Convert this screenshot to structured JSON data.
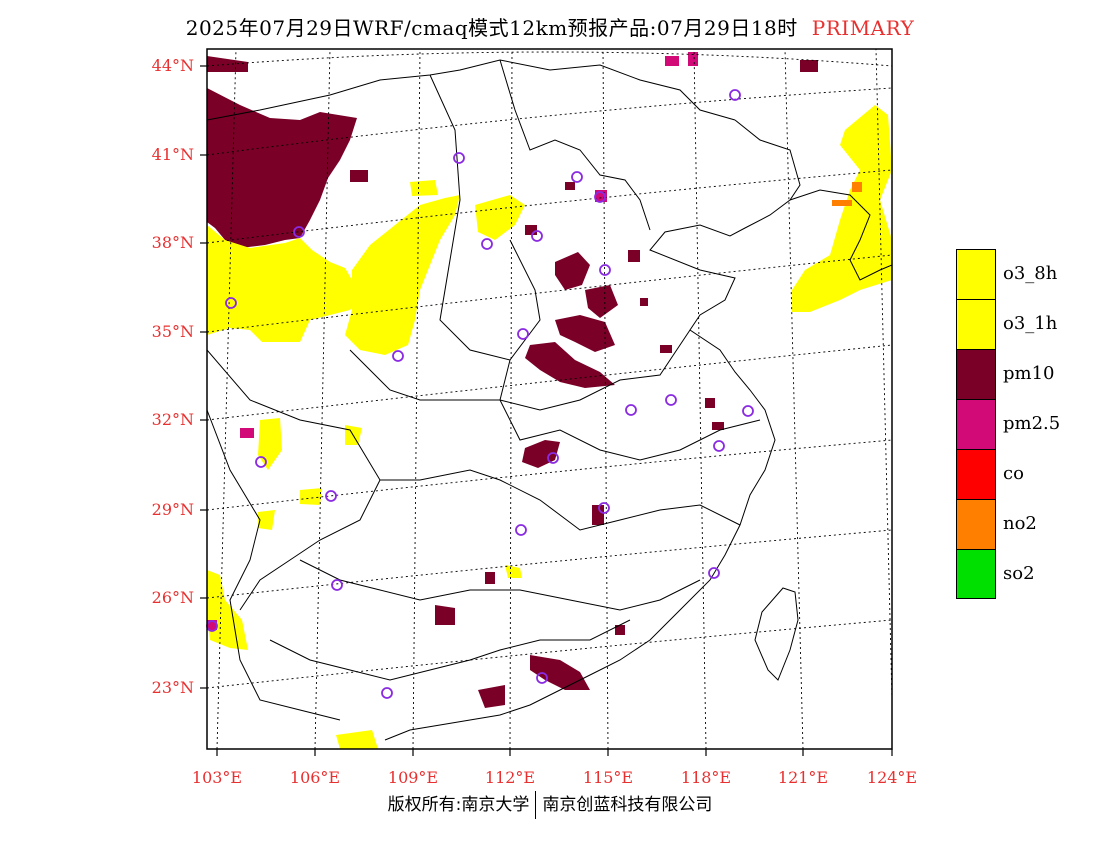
{
  "header": {
    "title": "2025年07月29日WRF/cmaq模式12km预报产品:07月29日18时",
    "tag": "PRIMARY"
  },
  "axes": {
    "lat_labels": [
      "44°N",
      "41°N",
      "38°N",
      "35°N",
      "32°N",
      "29°N",
      "26°N",
      "23°N"
    ],
    "lon_labels": [
      "103°E",
      "106°E",
      "109°E",
      "112°E",
      "115°E",
      "118°E",
      "121°E",
      "124°E"
    ]
  },
  "legend": {
    "items": [
      {
        "label": "o3_8h",
        "color": "#ffff00"
      },
      {
        "label": "o3_1h",
        "color": "#ffff00"
      },
      {
        "label": "pm10",
        "color": "#7a0028"
      },
      {
        "label": "pm2.5",
        "color": "#d10a78"
      },
      {
        "label": "co",
        "color": "#ff0000"
      },
      {
        "label": "no2",
        "color": "#ff7f00"
      },
      {
        "label": "so2",
        "color": "#00e000"
      }
    ]
  },
  "footer": {
    "left": "版权所有:南京大学",
    "right": "南京创蓝科技有限公司"
  },
  "colors": {
    "axis_label": "#e83030",
    "marker": "#8a2be2"
  }
}
